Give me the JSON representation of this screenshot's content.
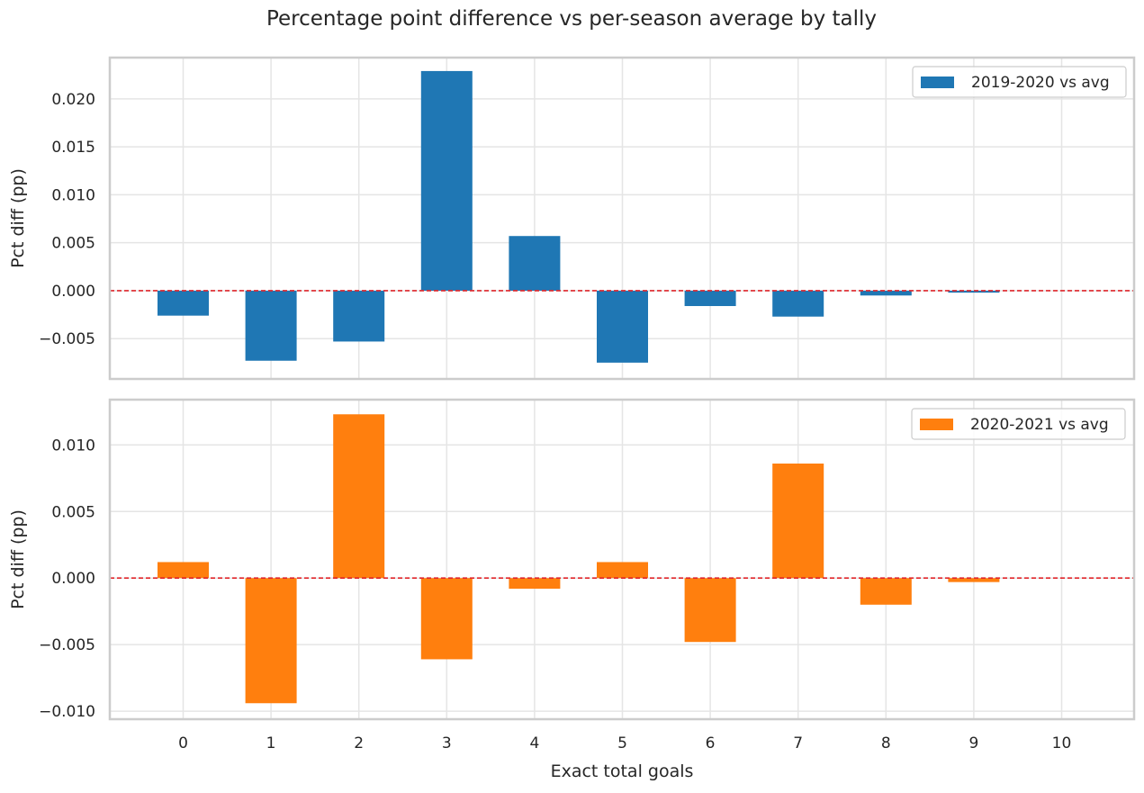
{
  "chart_data": {
    "type": "bar",
    "title": "Percentage point difference vs per-season average by tally",
    "xlabel": "Exact total goals",
    "categories": [
      "0",
      "1",
      "2",
      "3",
      "4",
      "5",
      "6",
      "7",
      "8",
      "9",
      "10"
    ],
    "panels": [
      {
        "ylabel": "Pct diff (pp)",
        "ylim": [
          -0.0092,
          0.0243
        ],
        "yticks": [
          -0.005,
          0.0,
          0.005,
          0.01,
          0.015,
          0.02
        ],
        "ytick_labels": [
          "−0.005",
          "0.000",
          "0.005",
          "0.010",
          "0.015",
          "0.020"
        ],
        "series": [
          {
            "name": "2019-2020 vs avg",
            "color": "#1f77b4",
            "values": [
              -0.0026,
              -0.0073,
              -0.0053,
              0.0229,
              0.0057,
              -0.0075,
              -0.0016,
              -0.0027,
              -0.0005,
              -0.0002,
              0.0
            ]
          }
        ],
        "legend": "upper right",
        "reference_line": {
          "y": 0,
          "color": "#e0262b",
          "style": "dashed"
        },
        "grid": true
      },
      {
        "ylabel": "Pct diff (pp)",
        "ylim": [
          -0.0106,
          0.0134
        ],
        "yticks": [
          -0.01,
          -0.005,
          0.0,
          0.005,
          0.01
        ],
        "ytick_labels": [
          "−0.010",
          "−0.005",
          "0.000",
          "0.005",
          "0.010"
        ],
        "series": [
          {
            "name": "2020-2021 vs avg",
            "color": "#ff7f0e",
            "values": [
              0.0012,
              -0.0094,
              0.0123,
              -0.0061,
              -0.0008,
              0.0012,
              -0.0048,
              0.0086,
              -0.002,
              -0.0003,
              0.0
            ]
          }
        ],
        "legend": "upper right",
        "reference_line": {
          "y": 0,
          "color": "#e0262b",
          "style": "dashed"
        },
        "grid": true
      }
    ]
  }
}
